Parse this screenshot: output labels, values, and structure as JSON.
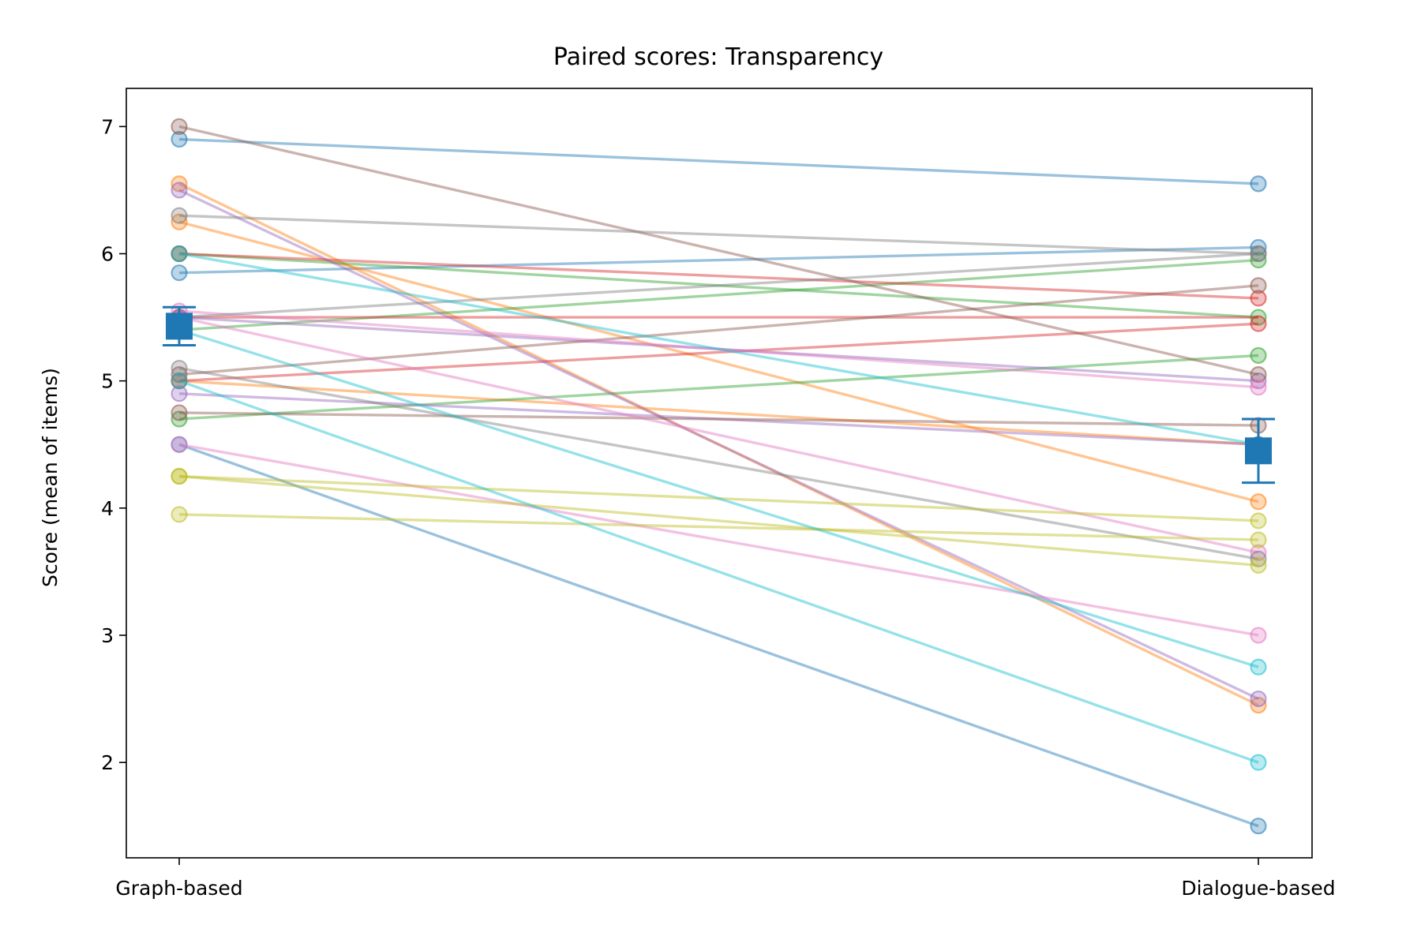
{
  "chart_data": {
    "type": "line",
    "title": "Paired scores: Transparency",
    "xlabel": "",
    "ylabel": "Score (mean of items)",
    "categories": [
      "Graph-based",
      "Dialogue-based"
    ],
    "ylim": [
      1.25,
      7.3
    ],
    "yticks": [
      2,
      3,
      4,
      5,
      6,
      7
    ],
    "grid": false,
    "legend": "none",
    "pairs": [
      {
        "values": [
          6.9,
          6.55
        ],
        "color": "#1f77b4"
      },
      {
        "values": [
          5.85,
          6.05
        ],
        "color": "#1f77b4"
      },
      {
        "values": [
          4.5,
          1.5
        ],
        "color": "#1f77b4"
      },
      {
        "values": [
          6.55,
          2.45
        ],
        "color": "#ff7f0e"
      },
      {
        "values": [
          6.25,
          4.05
        ],
        "color": "#ff7f0e"
      },
      {
        "values": [
          5.0,
          4.5
        ],
        "color": "#ff7f0e"
      },
      {
        "values": [
          6.0,
          5.5
        ],
        "color": "#2ca02c"
      },
      {
        "values": [
          5.4,
          5.95
        ],
        "color": "#2ca02c"
      },
      {
        "values": [
          4.7,
          5.2
        ],
        "color": "#2ca02c"
      },
      {
        "values": [
          6.0,
          5.65
        ],
        "color": "#d62728"
      },
      {
        "values": [
          5.5,
          5.5
        ],
        "color": "#d62728"
      },
      {
        "values": [
          5.0,
          5.45
        ],
        "color": "#d62728"
      },
      {
        "values": [
          6.5,
          2.5
        ],
        "color": "#9467bd"
      },
      {
        "values": [
          5.5,
          5.0
        ],
        "color": "#9467bd"
      },
      {
        "values": [
          4.9,
          4.5
        ],
        "color": "#9467bd"
      },
      {
        "values": [
          7.0,
          5.05
        ],
        "color": "#8c564b"
      },
      {
        "values": [
          5.05,
          5.75
        ],
        "color": "#8c564b"
      },
      {
        "values": [
          4.75,
          4.65
        ],
        "color": "#8c564b"
      },
      {
        "values": [
          5.55,
          4.95
        ],
        "color": "#e377c2"
      },
      {
        "values": [
          5.5,
          3.65
        ],
        "color": "#e377c2"
      },
      {
        "values": [
          4.5,
          3.0
        ],
        "color": "#e377c2"
      },
      {
        "values": [
          6.3,
          6.0
        ],
        "color": "#7f7f7f"
      },
      {
        "values": [
          5.5,
          6.0
        ],
        "color": "#7f7f7f"
      },
      {
        "values": [
          5.1,
          3.6
        ],
        "color": "#7f7f7f"
      },
      {
        "values": [
          4.25,
          3.9
        ],
        "color": "#bcbd22"
      },
      {
        "values": [
          4.25,
          3.55
        ],
        "color": "#bcbd22"
      },
      {
        "values": [
          3.95,
          3.75
        ],
        "color": "#bcbd22"
      },
      {
        "values": [
          6.0,
          4.5
        ],
        "color": "#17becf"
      },
      {
        "values": [
          5.4,
          2.75
        ],
        "color": "#17becf"
      },
      {
        "values": [
          5.0,
          2.0
        ],
        "color": "#17becf"
      }
    ],
    "means": {
      "values": [
        5.43,
        4.45
      ],
      "error": [
        0.15,
        0.25
      ],
      "color": "#1f77b4",
      "marker": "square"
    }
  }
}
